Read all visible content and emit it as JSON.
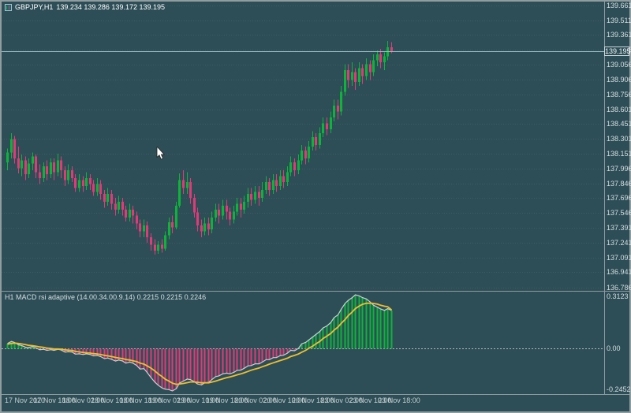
{
  "window": {
    "symbol": "GBPJPY,H1",
    "ohlc": "139.234 139.286 139.172 139.195"
  },
  "current_price": "139.195",
  "price_axis_labels": [
    "139.661",
    "139.511",
    "139.361",
    "139.206",
    "139.056",
    "138.906",
    "138.756",
    "138.601",
    "138.451",
    "138.301",
    "138.151",
    "137.996",
    "137.846",
    "137.696",
    "137.546",
    "137.391",
    "137.241",
    "137.091",
    "136.941",
    "136.786"
  ],
  "indicator_panel": {
    "title": "H1 MACD rsi adaptive (14.00.34.00.9.14)",
    "values": "0.2215 0.2215 0.2246",
    "axis_max": "0.3123",
    "axis_zero": "0.00",
    "axis_min": "-0.2452"
  },
  "time_axis_labels": [
    "17 Nov 2020",
    "17 Nov 18:00",
    "18 Nov 02:00",
    "18 Nov 10:00",
    "18 Nov 18:00",
    "19 Nov 02:00",
    "19 Nov 10:00",
    "19 Nov 18:00",
    "20 Nov 02:00",
    "20 Nov 10:00",
    "20 Nov 18:00",
    "23 Nov 02:00",
    "23 Nov 10:00",
    "23 Nov 18:00"
  ],
  "colors": {
    "background": "#2e4e57",
    "bull": "#0cb53a",
    "bear": "#e23a78",
    "macd_line": "#c9d2d4",
    "signal_line": "#f0bf2e",
    "grid": "rgba(255,255,255,0.08)",
    "zero_line": "#aeb9ba",
    "separator": "#8f9b9e",
    "current_price_line": "#9dbfc8",
    "axis_text": "#d5dee0"
  },
  "chart_data": {
    "type": "candlestick+macd",
    "symbol": "GBPJPY",
    "timeframe": "H1",
    "title": "GBPJPY,H1 with MACD rsi adaptive indicator",
    "price_axis": {
      "min": 136.76,
      "max": 139.7
    },
    "macd_axis": {
      "min": -0.2452,
      "max": 0.3123
    },
    "label_every_bars": 8,
    "candles": [
      [
        138.06,
        138.2,
        137.98,
        138.16
      ],
      [
        138.16,
        138.36,
        138.1,
        138.3
      ],
      [
        138.3,
        138.33,
        138.05,
        138.1
      ],
      [
        138.1,
        138.22,
        137.95,
        138.0
      ],
      [
        138.0,
        138.14,
        137.92,
        138.08
      ],
      [
        138.08,
        138.12,
        137.88,
        137.94
      ],
      [
        137.94,
        138.1,
        137.9,
        138.05
      ],
      [
        138.05,
        138.16,
        137.98,
        138.12
      ],
      [
        138.12,
        138.14,
        137.9,
        137.96
      ],
      [
        137.96,
        138.04,
        137.84,
        137.9
      ],
      [
        137.9,
        138.06,
        137.86,
        138.02
      ],
      [
        138.02,
        138.08,
        137.88,
        137.94
      ],
      [
        137.94,
        138.1,
        137.9,
        138.06
      ],
      [
        138.06,
        138.1,
        137.88,
        137.96
      ],
      [
        137.96,
        138.15,
        137.92,
        138.08
      ],
      [
        138.08,
        138.12,
        137.9,
        137.98
      ],
      [
        137.98,
        138.02,
        137.82,
        137.88
      ],
      [
        137.88,
        138.04,
        137.84,
        137.98
      ],
      [
        137.98,
        138.02,
        137.86,
        137.9
      ],
      [
        137.9,
        137.94,
        137.76,
        137.8
      ],
      [
        137.8,
        137.94,
        137.76,
        137.88
      ],
      [
        137.88,
        137.92,
        137.76,
        137.82
      ],
      [
        137.82,
        137.96,
        137.78,
        137.9
      ],
      [
        137.9,
        137.94,
        137.78,
        137.84
      ],
      [
        137.84,
        137.88,
        137.72,
        137.76
      ],
      [
        137.76,
        137.9,
        137.72,
        137.84
      ],
      [
        137.84,
        137.88,
        137.68,
        137.74
      ],
      [
        137.74,
        137.78,
        137.6,
        137.66
      ],
      [
        137.66,
        137.8,
        137.62,
        137.74
      ],
      [
        137.74,
        137.78,
        137.58,
        137.64
      ],
      [
        137.64,
        137.7,
        137.52,
        137.58
      ],
      [
        137.58,
        137.72,
        137.54,
        137.66
      ],
      [
        137.66,
        137.7,
        137.52,
        137.58
      ],
      [
        137.58,
        137.62,
        137.46,
        137.5
      ],
      [
        137.5,
        137.64,
        137.46,
        137.58
      ],
      [
        137.58,
        137.62,
        137.44,
        137.52
      ],
      [
        137.52,
        137.56,
        137.38,
        137.44
      ],
      [
        137.44,
        137.48,
        137.3,
        137.36
      ],
      [
        137.36,
        137.48,
        137.3,
        137.42
      ],
      [
        137.42,
        137.46,
        137.24,
        137.3
      ],
      [
        137.3,
        137.34,
        137.16,
        137.22
      ],
      [
        137.22,
        137.28,
        137.12,
        137.16
      ],
      [
        137.16,
        137.26,
        137.13,
        137.22
      ],
      [
        137.22,
        137.28,
        137.14,
        137.18
      ],
      [
        137.18,
        137.36,
        137.16,
        137.32
      ],
      [
        137.32,
        137.5,
        137.28,
        137.45
      ],
      [
        137.45,
        137.52,
        137.34,
        137.4
      ],
      [
        137.4,
        137.66,
        137.38,
        137.62
      ],
      [
        137.62,
        137.95,
        137.6,
        137.88
      ],
      [
        137.88,
        137.98,
        137.74,
        137.8
      ],
      [
        137.8,
        137.96,
        137.74,
        137.86
      ],
      [
        137.86,
        137.9,
        137.64,
        137.7
      ],
      [
        137.7,
        137.74,
        137.5,
        137.55
      ],
      [
        137.55,
        137.6,
        137.36,
        137.42
      ],
      [
        137.42,
        137.48,
        137.3,
        137.36
      ],
      [
        137.36,
        137.5,
        137.32,
        137.44
      ],
      [
        137.44,
        137.5,
        137.32,
        137.38
      ],
      [
        137.38,
        137.56,
        137.34,
        137.5
      ],
      [
        137.5,
        137.64,
        137.46,
        137.58
      ],
      [
        137.58,
        137.64,
        137.44,
        137.52
      ],
      [
        137.52,
        137.68,
        137.48,
        137.62
      ],
      [
        137.62,
        137.68,
        137.48,
        137.56
      ],
      [
        137.56,
        137.6,
        137.42,
        137.48
      ],
      [
        137.48,
        137.62,
        137.44,
        137.56
      ],
      [
        137.56,
        137.7,
        137.52,
        137.64
      ],
      [
        137.64,
        137.7,
        137.5,
        137.58
      ],
      [
        137.58,
        137.72,
        137.54,
        137.66
      ],
      [
        137.66,
        137.8,
        137.6,
        137.74
      ],
      [
        137.74,
        137.8,
        137.62,
        137.68
      ],
      [
        137.68,
        137.82,
        137.64,
        137.76
      ],
      [
        137.76,
        137.82,
        137.62,
        137.7
      ],
      [
        137.7,
        137.86,
        137.66,
        137.78
      ],
      [
        137.78,
        137.92,
        137.74,
        137.86
      ],
      [
        137.86,
        137.9,
        137.72,
        137.78
      ],
      [
        137.78,
        137.94,
        137.74,
        137.88
      ],
      [
        137.88,
        137.94,
        137.76,
        137.82
      ],
      [
        137.82,
        137.98,
        137.78,
        137.92
      ],
      [
        137.92,
        137.98,
        137.8,
        137.86
      ],
      [
        137.86,
        138.02,
        137.82,
        137.96
      ],
      [
        137.96,
        138.12,
        137.92,
        138.06
      ],
      [
        138.06,
        138.1,
        137.92,
        137.98
      ],
      [
        137.98,
        138.14,
        137.94,
        138.08
      ],
      [
        138.08,
        138.24,
        138.04,
        138.18
      ],
      [
        138.18,
        138.22,
        138.04,
        138.1
      ],
      [
        138.1,
        138.28,
        138.06,
        138.22
      ],
      [
        138.22,
        138.38,
        138.18,
        138.32
      ],
      [
        138.32,
        138.36,
        138.18,
        138.24
      ],
      [
        138.24,
        138.42,
        138.2,
        138.36
      ],
      [
        138.36,
        138.52,
        138.32,
        138.46
      ],
      [
        138.46,
        138.52,
        138.34,
        138.4
      ],
      [
        138.4,
        138.58,
        138.36,
        138.52
      ],
      [
        138.52,
        138.7,
        138.48,
        138.64
      ],
      [
        138.64,
        138.7,
        138.5,
        138.58
      ],
      [
        138.58,
        138.84,
        138.54,
        138.78
      ],
      [
        138.78,
        139.06,
        138.74,
        139.0
      ],
      [
        139.0,
        139.06,
        138.82,
        138.9
      ],
      [
        138.9,
        139.08,
        138.84,
        138.98
      ],
      [
        138.98,
        139.02,
        138.8,
        138.88
      ],
      [
        138.88,
        139.08,
        138.84,
        139.02
      ],
      [
        139.02,
        139.06,
        138.86,
        138.94
      ],
      [
        138.94,
        139.12,
        138.9,
        139.06
      ],
      [
        139.06,
        139.1,
        138.9,
        138.98
      ],
      [
        138.98,
        139.16,
        138.94,
        139.1
      ],
      [
        139.1,
        139.2,
        139.04,
        139.16
      ],
      [
        139.16,
        139.22,
        139.02,
        139.08
      ],
      [
        139.08,
        139.18,
        139.0,
        139.14
      ],
      [
        139.14,
        139.3,
        139.1,
        139.234
      ],
      [
        139.234,
        139.286,
        139.172,
        139.195
      ]
    ],
    "macd": [
      0.03,
      0.042,
      0.036,
      0.022,
      0.018,
      0.008,
      0.006,
      0.012,
      0.004,
      -0.006,
      -0.004,
      -0.01,
      -0.006,
      -0.01,
      -0.004,
      -0.008,
      -0.02,
      -0.018,
      -0.02,
      -0.032,
      -0.03,
      -0.034,
      -0.03,
      -0.034,
      -0.042,
      -0.04,
      -0.046,
      -0.058,
      -0.054,
      -0.062,
      -0.072,
      -0.066,
      -0.072,
      -0.084,
      -0.078,
      -0.084,
      -0.098,
      -0.118,
      -0.116,
      -0.138,
      -0.168,
      -0.195,
      -0.212,
      -0.228,
      -0.235,
      -0.238,
      -0.245,
      -0.232,
      -0.2,
      -0.188,
      -0.176,
      -0.18,
      -0.192,
      -0.205,
      -0.21,
      -0.198,
      -0.196,
      -0.18,
      -0.162,
      -0.158,
      -0.146,
      -0.142,
      -0.146,
      -0.138,
      -0.126,
      -0.124,
      -0.114,
      -0.1,
      -0.098,
      -0.088,
      -0.088,
      -0.078,
      -0.064,
      -0.064,
      -0.052,
      -0.052,
      -0.04,
      -0.038,
      -0.026,
      -0.01,
      -0.012,
      0.002,
      0.028,
      0.036,
      0.05,
      0.068,
      0.082,
      0.1,
      0.12,
      0.132,
      0.152,
      0.18,
      0.196,
      0.228,
      0.262,
      0.28,
      0.296,
      0.3123,
      0.306,
      0.296,
      0.288,
      0.27,
      0.252,
      0.24,
      0.23,
      0.222,
      0.232,
      0.2215
    ],
    "signal": [
      0.026,
      0.03,
      0.032,
      0.03,
      0.027,
      0.023,
      0.019,
      0.017,
      0.014,
      0.01,
      0.007,
      0.003,
      0.001,
      -0.002,
      -0.002,
      -0.003,
      -0.007,
      -0.009,
      -0.011,
      -0.016,
      -0.019,
      -0.022,
      -0.024,
      -0.026,
      -0.029,
      -0.031,
      -0.034,
      -0.039,
      -0.042,
      -0.046,
      -0.051,
      -0.054,
      -0.058,
      -0.063,
      -0.066,
      -0.07,
      -0.075,
      -0.084,
      -0.09,
      -0.1,
      -0.113,
      -0.13,
      -0.146,
      -0.162,
      -0.177,
      -0.189,
      -0.2,
      -0.207,
      -0.205,
      -0.202,
      -0.197,
      -0.193,
      -0.193,
      -0.195,
      -0.198,
      -0.198,
      -0.198,
      -0.194,
      -0.188,
      -0.182,
      -0.175,
      -0.168,
      -0.164,
      -0.158,
      -0.152,
      -0.146,
      -0.14,
      -0.132,
      -0.125,
      -0.118,
      -0.112,
      -0.105,
      -0.097,
      -0.09,
      -0.082,
      -0.076,
      -0.069,
      -0.063,
      -0.055,
      -0.046,
      -0.039,
      -0.031,
      -0.021,
      -0.01,
      0.002,
      0.015,
      0.028,
      0.042,
      0.058,
      0.073,
      0.089,
      0.107,
      0.125,
      0.146,
      0.169,
      0.191,
      0.212,
      0.232,
      0.247,
      0.257,
      0.263,
      0.264,
      0.262,
      0.258,
      0.252,
      0.246,
      0.243,
      0.2246
    ]
  }
}
